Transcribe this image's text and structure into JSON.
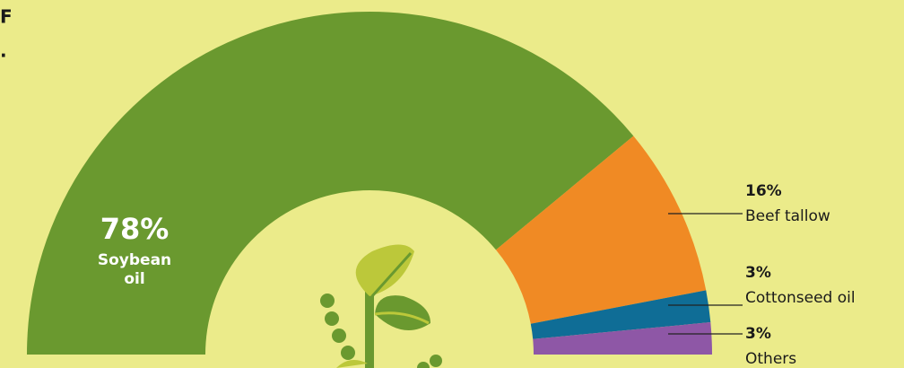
{
  "chart_data": {
    "type": "semi-donut",
    "corner_text": [
      "F",
      "."
    ],
    "categories": [
      "Soybean oil",
      "Beef tallow",
      "Cottonseed oil",
      "Others"
    ],
    "values": [
      78,
      16,
      3,
      3
    ],
    "value_labels": [
      "78%",
      "16%",
      "3%",
      "3%"
    ],
    "colors": [
      "#6a992f",
      "#f08a24",
      "#0f6d96",
      "#8e57a6"
    ]
  }
}
